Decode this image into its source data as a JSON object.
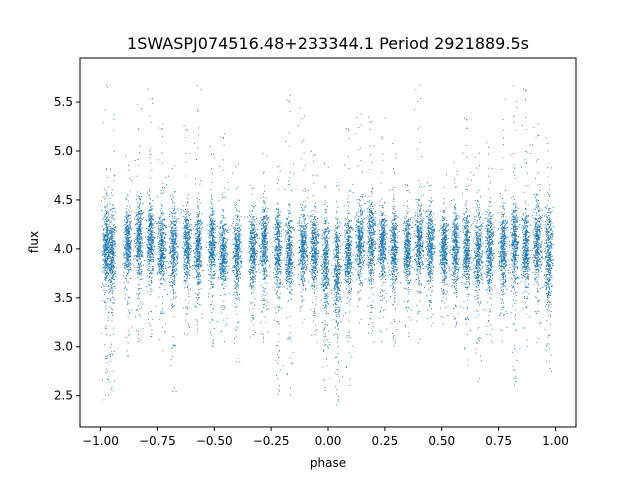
{
  "chart_data": {
    "type": "scatter",
    "title": "1SWASPJ074516.48+233344.1 Period 2921889.5s",
    "xlabel": "phase",
    "ylabel": "flux",
    "xlim": [
      -1.09,
      1.09
    ],
    "ylim": [
      2.18,
      5.95
    ],
    "x_ticks": [
      -1.0,
      -0.75,
      -0.5,
      -0.25,
      0.0,
      0.25,
      0.5,
      0.75,
      1.0
    ],
    "x_tick_labels": [
      "−1.00",
      "−0.75",
      "−0.50",
      "−0.25",
      "0.00",
      "0.25",
      "0.50",
      "0.75",
      "1.00"
    ],
    "y_ticks": [
      2.5,
      3.0,
      3.5,
      4.0,
      4.5,
      5.0,
      5.5
    ],
    "y_tick_labels": [
      "2.5",
      "3.0",
      "3.5",
      "4.0",
      "4.5",
      "5.0",
      "5.5"
    ],
    "grid": false,
    "marker_color": "#1f77b4",
    "series": [
      {
        "clusters": [
          {
            "x": -0.975,
            "center": 4.05,
            "spread": 0.28,
            "min": 2.45,
            "max": 5.7
          },
          {
            "x": -0.95,
            "center": 3.95,
            "spread": 0.3,
            "min": 2.5,
            "max": 5.4
          },
          {
            "x": -0.88,
            "center": 4.05,
            "spread": 0.25,
            "min": 2.9,
            "max": 5.0
          },
          {
            "x": -0.83,
            "center": 4.1,
            "spread": 0.28,
            "min": 3.0,
            "max": 5.5
          },
          {
            "x": -0.78,
            "center": 4.1,
            "spread": 0.25,
            "min": 3.1,
            "max": 5.7
          },
          {
            "x": -0.73,
            "center": 4.0,
            "spread": 0.25,
            "min": 2.9,
            "max": 5.3
          },
          {
            "x": -0.68,
            "center": 4.0,
            "spread": 0.3,
            "min": 2.5,
            "max": 5.0
          },
          {
            "x": -0.62,
            "center": 4.05,
            "spread": 0.25,
            "min": 3.0,
            "max": 5.6
          },
          {
            "x": -0.57,
            "center": 4.0,
            "spread": 0.28,
            "min": 3.1,
            "max": 5.7
          },
          {
            "x": -0.51,
            "center": 4.05,
            "spread": 0.25,
            "min": 3.0,
            "max": 5.1
          },
          {
            "x": -0.46,
            "center": 3.95,
            "spread": 0.25,
            "min": 3.0,
            "max": 5.2
          },
          {
            "x": -0.4,
            "center": 3.95,
            "spread": 0.28,
            "min": 2.8,
            "max": 5.0
          },
          {
            "x": -0.33,
            "center": 4.0,
            "spread": 0.25,
            "min": 3.0,
            "max": 4.9
          },
          {
            "x": -0.28,
            "center": 4.05,
            "spread": 0.28,
            "min": 3.0,
            "max": 5.0
          },
          {
            "x": -0.22,
            "center": 4.0,
            "spread": 0.28,
            "min": 2.5,
            "max": 5.0
          },
          {
            "x": -0.17,
            "center": 3.95,
            "spread": 0.28,
            "min": 2.5,
            "max": 5.6
          },
          {
            "x": -0.11,
            "center": 4.0,
            "spread": 0.25,
            "min": 3.2,
            "max": 5.5
          },
          {
            "x": -0.06,
            "center": 4.0,
            "spread": 0.25,
            "min": 3.0,
            "max": 5.3
          },
          {
            "x": -0.01,
            "center": 3.85,
            "spread": 0.35,
            "min": 2.5,
            "max": 4.9
          },
          {
            "x": 0.04,
            "center": 3.8,
            "spread": 0.35,
            "min": 2.4,
            "max": 4.8
          },
          {
            "x": 0.09,
            "center": 3.95,
            "spread": 0.28,
            "min": 2.6,
            "max": 5.3
          },
          {
            "x": 0.14,
            "center": 4.05,
            "spread": 0.25,
            "min": 3.2,
            "max": 5.4
          },
          {
            "x": 0.19,
            "center": 4.1,
            "spread": 0.28,
            "min": 3.0,
            "max": 5.7
          },
          {
            "x": 0.24,
            "center": 4.05,
            "spread": 0.25,
            "min": 3.0,
            "max": 5.4
          },
          {
            "x": 0.29,
            "center": 4.0,
            "spread": 0.25,
            "min": 3.0,
            "max": 5.1
          },
          {
            "x": 0.35,
            "center": 4.0,
            "spread": 0.25,
            "min": 3.1,
            "max": 4.7
          },
          {
            "x": 0.4,
            "center": 4.05,
            "spread": 0.25,
            "min": 3.0,
            "max": 5.7
          },
          {
            "x": 0.45,
            "center": 4.05,
            "spread": 0.25,
            "min": 3.2,
            "max": 4.9
          },
          {
            "x": 0.51,
            "center": 4.0,
            "spread": 0.25,
            "min": 3.2,
            "max": 4.8
          },
          {
            "x": 0.56,
            "center": 4.0,
            "spread": 0.25,
            "min": 3.2,
            "max": 4.9
          },
          {
            "x": 0.61,
            "center": 4.0,
            "spread": 0.28,
            "min": 2.8,
            "max": 5.4
          },
          {
            "x": 0.66,
            "center": 3.95,
            "spread": 0.3,
            "min": 2.6,
            "max": 5.0
          },
          {
            "x": 0.71,
            "center": 4.0,
            "spread": 0.28,
            "min": 3.0,
            "max": 5.4
          },
          {
            "x": 0.77,
            "center": 4.0,
            "spread": 0.28,
            "min": 3.0,
            "max": 5.6
          },
          {
            "x": 0.82,
            "center": 4.05,
            "spread": 0.28,
            "min": 2.6,
            "max": 5.7
          },
          {
            "x": 0.87,
            "center": 4.0,
            "spread": 0.28,
            "min": 3.0,
            "max": 5.7
          },
          {
            "x": 0.92,
            "center": 4.05,
            "spread": 0.28,
            "min": 3.0,
            "max": 5.3
          },
          {
            "x": 0.97,
            "center": 3.95,
            "spread": 0.35,
            "min": 2.7,
            "max": 5.5
          }
        ]
      }
    ]
  }
}
